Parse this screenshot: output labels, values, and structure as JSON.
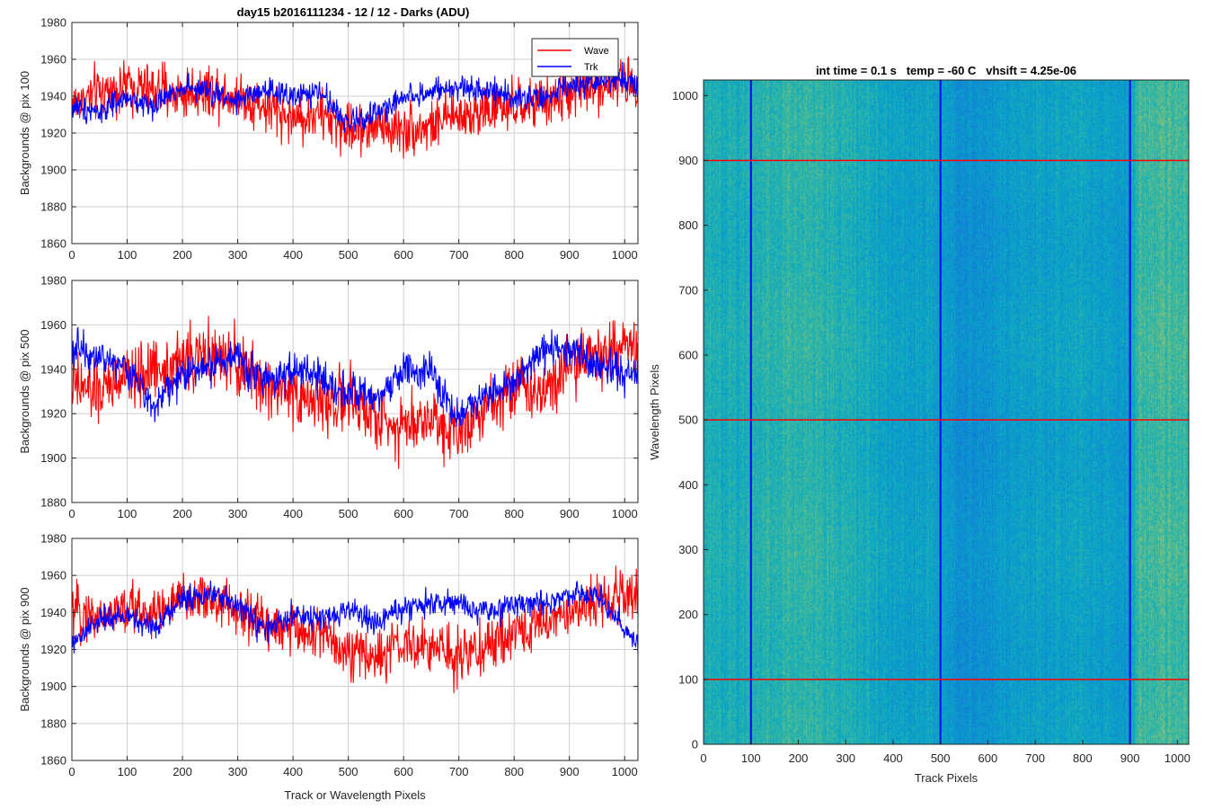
{
  "figure": {
    "suptitle": "day15 b2016111234 - 12 / 12 - Darks (ADU)"
  },
  "chart_data": [
    {
      "type": "line",
      "ylabel": "Backgrounds @ pix 100",
      "xlabel": "",
      "xlim": [
        0,
        1024
      ],
      "ylim": [
        1860,
        1980
      ],
      "xticks": [
        0,
        100,
        200,
        300,
        400,
        500,
        600,
        700,
        800,
        900,
        1000
      ],
      "yticks": [
        1860,
        1880,
        1900,
        1920,
        1940,
        1960,
        1980
      ],
      "grid": true,
      "legend": "top-right",
      "series": [
        {
          "name": "Wave",
          "color": "#ff0000",
          "x": [
            0,
            50,
            100,
            150,
            200,
            250,
            300,
            350,
            400,
            450,
            500,
            550,
            600,
            650,
            700,
            750,
            800,
            850,
            900,
            950,
            1000,
            1024
          ],
          "y": [
            1936,
            1942,
            1946,
            1943,
            1941,
            1944,
            1940,
            1934,
            1928,
            1930,
            1922,
            1924,
            1922,
            1924,
            1930,
            1932,
            1934,
            1936,
            1942,
            1946,
            1948,
            1946
          ],
          "noise": 10
        },
        {
          "name": "Trk",
          "color": "#0000ff",
          "x": [
            0,
            50,
            100,
            150,
            200,
            250,
            300,
            350,
            400,
            450,
            500,
            550,
            600,
            650,
            700,
            750,
            800,
            850,
            900,
            950,
            1000,
            1024
          ],
          "y": [
            1934,
            1932,
            1938,
            1935,
            1946,
            1942,
            1938,
            1942,
            1940,
            1942,
            1925,
            1930,
            1940,
            1942,
            1944,
            1944,
            1940,
            1938,
            1945,
            1948,
            1950,
            1946
          ],
          "noise": 5
        }
      ]
    },
    {
      "type": "line",
      "ylabel": "Backgrounds @ pix 500",
      "xlabel": "",
      "xlim": [
        0,
        1024
      ],
      "ylim": [
        1880,
        1980
      ],
      "xticks": [
        0,
        100,
        200,
        300,
        400,
        500,
        600,
        700,
        800,
        900,
        1000
      ],
      "yticks": [
        1880,
        1900,
        1920,
        1940,
        1960,
        1980
      ],
      "grid": true,
      "series": [
        {
          "name": "Wave",
          "color": "#ff0000",
          "x": [
            0,
            50,
            100,
            150,
            200,
            250,
            300,
            350,
            400,
            450,
            500,
            550,
            600,
            650,
            700,
            750,
            800,
            850,
            900,
            950,
            1000,
            1024
          ],
          "y": [
            1932,
            1930,
            1936,
            1940,
            1944,
            1946,
            1942,
            1932,
            1930,
            1924,
            1926,
            1918,
            1915,
            1918,
            1912,
            1925,
            1932,
            1930,
            1944,
            1946,
            1950,
            1948
          ],
          "noise": 10
        },
        {
          "name": "Trk",
          "color": "#0000ff",
          "x": [
            0,
            50,
            100,
            150,
            200,
            250,
            300,
            350,
            400,
            450,
            500,
            550,
            600,
            650,
            700,
            750,
            800,
            850,
            900,
            950,
            1000,
            1024
          ],
          "y": [
            1950,
            1946,
            1940,
            1924,
            1938,
            1942,
            1946,
            1935,
            1940,
            1936,
            1930,
            1925,
            1940,
            1938,
            1918,
            1930,
            1935,
            1948,
            1950,
            1942,
            1938,
            1940
          ],
          "noise": 6
        }
      ]
    },
    {
      "type": "line",
      "ylabel": "Backgrounds @ pix 900",
      "xlabel": "Track or Wavelength Pixels",
      "xlim": [
        0,
        1024
      ],
      "ylim": [
        1860,
        1980
      ],
      "xticks": [
        0,
        100,
        200,
        300,
        400,
        500,
        600,
        700,
        800,
        900,
        1000
      ],
      "yticks": [
        1860,
        1880,
        1900,
        1920,
        1940,
        1960,
        1980
      ],
      "grid": true,
      "series": [
        {
          "name": "Wave",
          "color": "#ff0000",
          "x": [
            0,
            50,
            100,
            150,
            200,
            250,
            300,
            350,
            400,
            450,
            500,
            550,
            600,
            650,
            700,
            750,
            800,
            850,
            900,
            950,
            1000,
            1024
          ],
          "y": [
            1940,
            1938,
            1942,
            1940,
            1946,
            1948,
            1940,
            1935,
            1930,
            1928,
            1920,
            1915,
            1922,
            1920,
            1918,
            1920,
            1930,
            1934,
            1940,
            1946,
            1950,
            1948
          ],
          "noise": 10
        },
        {
          "name": "Trk",
          "color": "#0000ff",
          "x": [
            0,
            50,
            100,
            150,
            200,
            250,
            300,
            350,
            400,
            450,
            500,
            550,
            600,
            650,
            700,
            750,
            800,
            850,
            900,
            950,
            1000,
            1024
          ],
          "y": [
            1922,
            1936,
            1938,
            1932,
            1948,
            1950,
            1944,
            1930,
            1938,
            1936,
            1942,
            1934,
            1942,
            1946,
            1944,
            1940,
            1944,
            1946,
            1950,
            1950,
            1930,
            1924
          ],
          "noise": 5
        }
      ]
    },
    {
      "type": "heatmap",
      "title": "int time = 0.1 s   temp = -60 C   vhsift = 4.25e-06",
      "xlabel": "Track Pixels",
      "ylabel": "Wavelength Pixels",
      "xlim": [
        0,
        1024
      ],
      "ylim": [
        0,
        1024
      ],
      "xticks": [
        0,
        100,
        200,
        300,
        400,
        500,
        600,
        700,
        800,
        900,
        1000
      ],
      "yticks": [
        0,
        100,
        200,
        300,
        400,
        500,
        600,
        700,
        800,
        900,
        1000
      ],
      "colormap": "parula",
      "column_profile": {
        "x": [
          0,
          80,
          150,
          250,
          320,
          400,
          450,
          500,
          550,
          600,
          650,
          700,
          760,
          820,
          880,
          900,
          920,
          1000,
          1024
        ],
        "level": [
          0.52,
          0.5,
          0.55,
          0.56,
          0.5,
          0.44,
          0.42,
          0.44,
          0.36,
          0.37,
          0.41,
          0.42,
          0.44,
          0.44,
          0.4,
          0.42,
          0.6,
          0.6,
          0.58
        ]
      },
      "vlines": {
        "x": [
          100,
          500,
          900
        ],
        "color": "#0000ff"
      },
      "hlines": {
        "y": [
          100,
          500,
          900
        ],
        "color": "#ff0000"
      }
    }
  ]
}
